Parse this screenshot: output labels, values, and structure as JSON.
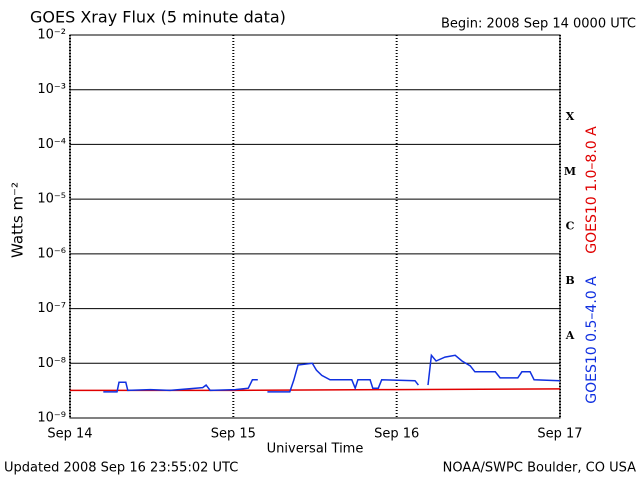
{
  "chart_data": {
    "type": "line",
    "title": "GOES Xray Flux (5 minute data)",
    "subtitle": "Begin:  2008 Sep 14 0000 UTC",
    "x_label": "Universal Time",
    "y_label": "Watts m⁻²",
    "footer_left": "Updated 2008 Sep 16 23:55:02 UTC",
    "footer_right": "NOAA/SWPC Boulder, CO USA",
    "y_log": true,
    "grid": true,
    "xlim": [
      0,
      72
    ],
    "xticks": [
      {
        "value": 0,
        "label": "Sep 14"
      },
      {
        "value": 24,
        "label": "Sep 15"
      },
      {
        "value": 48,
        "label": "Sep 16"
      },
      {
        "value": 72,
        "label": "Sep 17"
      }
    ],
    "ylim": [
      1e-09,
      0.01
    ],
    "yticks": [
      {
        "value": 1e-09,
        "label": "10⁻⁹"
      },
      {
        "value": 1e-08,
        "label": "10⁻⁸"
      },
      {
        "value": 1e-07,
        "label": "10⁻⁷"
      },
      {
        "value": 1e-06,
        "label": "10⁻⁶"
      },
      {
        "value": 1e-05,
        "label": "10⁻⁵"
      },
      {
        "value": 0.0001,
        "label": "10⁻⁴"
      },
      {
        "value": 0.001,
        "label": "10⁻³"
      },
      {
        "value": 0.01,
        "label": "10⁻²"
      }
    ],
    "flare_classes": [
      {
        "label": "X",
        "value": 0.0001
      },
      {
        "label": "M",
        "value": 1e-05
      },
      {
        "label": "C",
        "value": 1e-06
      },
      {
        "label": "B",
        "value": 1e-07
      },
      {
        "label": "A",
        "value": 1e-08
      }
    ],
    "series": [
      {
        "name": "GOES10 1.0–8.0 A",
        "color": "#e00000",
        "x": [
          0,
          24,
          48,
          72
        ],
        "values": [
          3.2e-09,
          3.2e-09,
          3.3e-09,
          3.4e-09
        ]
      },
      {
        "name": "GOES10 0.5–4.0 A",
        "color": "#1030e0",
        "x": [
          4.9,
          6.9,
          7.2,
          8.2,
          8.5,
          11.8,
          14.7,
          19.5,
          20.0,
          20.6,
          24.3,
          26.2,
          26.8,
          27.6,
          28,
          29.0,
          32.3,
          32.9,
          33.5,
          35.6,
          36.2,
          37.0,
          38.2,
          41.4,
          41.9,
          42.3,
          44.1,
          44.5,
          45.3,
          45.8,
          50.7,
          51.2,
          52,
          52.6,
          53.1,
          53.8,
          55.1,
          56.6,
          57.6,
          58.8,
          59.5,
          62.5,
          63.2,
          65.8,
          66.4,
          67.6,
          68.2,
          72
        ],
        "values": [
          3e-09,
          3e-09,
          4.5e-09,
          4.5e-09,
          3.2e-09,
          3.3e-09,
          3.2e-09,
          3.6e-09,
          4e-09,
          3.2e-09,
          3.3e-09,
          3.5e-09,
          5e-09,
          5e-09,
          null,
          3e-09,
          3e-09,
          5e-09,
          9.3e-09,
          1e-08,
          7.5e-09,
          6e-09,
          5e-09,
          5e-09,
          3.5e-09,
          5e-09,
          5e-09,
          3.5e-09,
          3.5e-09,
          5e-09,
          4.8e-09,
          4e-09,
          null,
          4e-09,
          1.4e-08,
          1.1e-08,
          1.3e-08,
          1.4e-08,
          1.1e-08,
          9e-09,
          7e-09,
          7e-09,
          5.4e-09,
          5.4e-09,
          7e-09,
          7e-09,
          5e-09,
          4.8e-09
        ]
      }
    ]
  }
}
